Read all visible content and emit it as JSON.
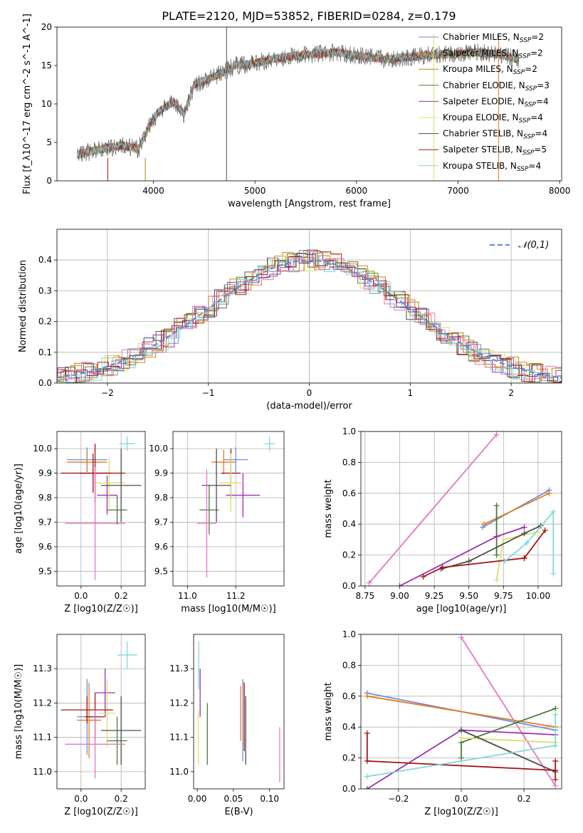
{
  "figure": {
    "title": "PLATE=2120, MJD=53852, FIBERID=0284, z=0.179",
    "palette": [
      "#6c8fd6",
      "#e87a1e",
      "#b8860b",
      "#4a7a3c",
      "#9b2fae",
      "#d9e06c",
      "#4d4d4d",
      "#a31515",
      "#7fd8dc"
    ],
    "extra_color": "#e377c2"
  },
  "chart_data": [
    {
      "id": "spectrum",
      "type": "line",
      "xlabel": "wavelength [Angstrom, rest frame]",
      "ylabel": "Flux [f_λ10^-17 erg cm^-2 s^-1 A^-1]",
      "xlim": [
        3050,
        8020
      ],
      "ylim": [
        0,
        20
      ],
      "xticks": [
        4000,
        5000,
        6000,
        7000,
        8000
      ],
      "yticks": [
        0,
        5,
        10,
        15,
        20
      ],
      "grid": false,
      "legend_position": "right",
      "legend": [
        "Chabrier MILES, N_SSP=2",
        "Salpeter MILES, N_SSP=2",
        "Kroupa MILES, N_SSP=2",
        "Chabrier ELODIE, N_SSP=3",
        "Salpeter ELODIE, N_SSP=4",
        "Kroupa ELODIE, N_SSP=4",
        "Chabrier STELIB, N_SSP=4",
        "Salpeter STELIB, N_SSP=5",
        "Kroupa STELIB, N_SSP=4"
      ],
      "continuum": {
        "x": [
          3250,
          3500,
          3700,
          3850,
          3950,
          4050,
          4200,
          4300,
          4400,
          4600,
          4800,
          5000,
          5200,
          5500,
          5800,
          6000,
          6300,
          6500,
          6800,
          7000,
          7200,
          7400,
          7600
        ],
        "y": [
          3.4,
          4.2,
          4.6,
          4.1,
          6.8,
          9.0,
          10.3,
          8.7,
          12.5,
          13.5,
          15.0,
          15.3,
          15.9,
          16.4,
          16.7,
          16.3,
          15.8,
          16.1,
          16.4,
          16.5,
          16.7,
          16.4,
          15.8
        ]
      },
      "spikes_x": [
        3550,
        3920,
        4720,
        6760,
        7400
      ]
    },
    {
      "id": "residuals",
      "type": "area",
      "xlabel": "(data-model)/error",
      "ylabel": "Normed distribution",
      "xlim": [
        -2.5,
        2.5
      ],
      "ylim": [
        0,
        0.5
      ],
      "xticks": [
        -2,
        -1,
        0,
        1,
        2
      ],
      "yticks": [
        0.0,
        0.1,
        0.2,
        0.3,
        0.4
      ],
      "grid": true,
      "legend": [
        "𝒩(0,1)"
      ],
      "legend_position": "top-right",
      "gaussian": {
        "mu": 0,
        "sigma": 1
      }
    },
    {
      "id": "age-vs-z",
      "type": "scatter",
      "xlabel": "Z [log10(Z/Z☉)]",
      "ylabel": "age [log10(age/yr)]",
      "xlim": [
        -0.12,
        0.32
      ],
      "ylim": [
        9.44,
        10.07
      ],
      "xticks": [
        0.0,
        0.2
      ],
      "yticks": [
        9.5,
        9.6,
        9.7,
        9.8,
        9.9,
        10.0
      ],
      "grid": true,
      "points": [
        {
          "x": 0.03,
          "y": 9.955,
          "xerr": 0.1,
          "yerr": 0.05,
          "c": 0
        },
        {
          "x": 0.03,
          "y": 9.945,
          "xerr": 0.1,
          "yerr": 0.04,
          "c": 1
        },
        {
          "x": 0.07,
          "y": 9.9,
          "xerr": 0.08,
          "yerr": 0.12,
          "c": 7
        },
        {
          "x": 0.13,
          "y": 9.81,
          "xerr": 0.05,
          "yerr": 0.08,
          "c": 4
        },
        {
          "x": 0.14,
          "y": 9.86,
          "xerr": 0.08,
          "yerr": 0.1,
          "c": 5
        },
        {
          "x": 0.18,
          "y": 9.75,
          "xerr": 0.05,
          "yerr": 0.06,
          "c": 3
        },
        {
          "x": 0.2,
          "y": 9.85,
          "xerr": 0.1,
          "yerr": 0.15,
          "c": 6
        },
        {
          "x": 0.06,
          "y": 9.9,
          "xerr": 0.16,
          "yerr": 0.08,
          "c": 7
        },
        {
          "x": 0.23,
          "y": 10.02,
          "xerr": 0.04,
          "yerr": 0.03,
          "c": 8
        },
        {
          "x": 0.07,
          "y": 9.695,
          "xerr": 0.15,
          "yerr": 0.23,
          "c": 9
        }
      ]
    },
    {
      "id": "age-vs-mass",
      "type": "scatter",
      "xlabel": "mass [log10(M/M☉)]",
      "ylabel": "",
      "xlim": [
        10.94,
        11.4
      ],
      "ylim": [
        9.44,
        10.07
      ],
      "xticks": [
        11.0,
        11.2
      ],
      "yticks": [
        9.5,
        9.6,
        9.7,
        9.8,
        9.9,
        10.0
      ],
      "grid": true,
      "points": [
        {
          "x": 11.2,
          "y": 9.955,
          "xerr": 0.05,
          "yerr": 0.05,
          "c": 0
        },
        {
          "x": 11.15,
          "y": 9.945,
          "xerr": 0.05,
          "yerr": 0.05,
          "c": 1
        },
        {
          "x": 11.18,
          "y": 9.9,
          "xerr": 0.04,
          "yerr": 0.1,
          "c": 7
        },
        {
          "x": 11.23,
          "y": 9.81,
          "xerr": 0.07,
          "yerr": 0.09,
          "c": 4
        },
        {
          "x": 11.18,
          "y": 9.86,
          "xerr": 0.05,
          "yerr": 0.12,
          "c": 5
        },
        {
          "x": 11.09,
          "y": 9.75,
          "xerr": 0.04,
          "yerr": 0.1,
          "c": 3
        },
        {
          "x": 11.12,
          "y": 9.85,
          "xerr": 0.06,
          "yerr": 0.15,
          "c": 6
        },
        {
          "x": 11.34,
          "y": 10.02,
          "xerr": 0.02,
          "yerr": 0.03,
          "c": 8
        },
        {
          "x": 11.08,
          "y": 9.695,
          "xerr": 0.04,
          "yerr": 0.22,
          "c": 9
        }
      ]
    },
    {
      "id": "weight-vs-age",
      "type": "line",
      "xlabel": "age [log10(age/yr)]",
      "ylabel": "mass weight",
      "xlim": [
        8.72,
        10.17
      ],
      "ylim": [
        0,
        1
      ],
      "xticks": [
        8.75,
        9.0,
        9.25,
        9.5,
        9.75,
        10.0
      ],
      "yticks": [
        0.0,
        0.2,
        0.4,
        0.6,
        0.8,
        1.0
      ],
      "grid": true,
      "series": [
        {
          "c": 9,
          "x": [
            8.78,
            9.7
          ],
          "y": [
            0.02,
            0.98
          ]
        },
        {
          "c": 0,
          "x": [
            9.6,
            10.08
          ],
          "y": [
            0.38,
            0.62
          ]
        },
        {
          "c": 1,
          "x": [
            9.61,
            10.08
          ],
          "y": [
            0.4,
            0.6
          ]
        },
        {
          "c": 3,
          "x": [
            9.7,
            9.7
          ],
          "y": [
            0.2,
            0.52
          ]
        },
        {
          "c": 4,
          "x": [
            9.0,
            9.7,
            9.9
          ],
          "y": [
            0.0,
            0.32,
            0.38
          ]
        },
        {
          "c": 5,
          "x": [
            9.7,
            9.75,
            10.0
          ],
          "y": [
            0.04,
            0.3,
            0.35
          ]
        },
        {
          "c": 6,
          "x": [
            9.3,
            9.5,
            9.9,
            10.02
          ],
          "y": [
            0.11,
            0.16,
            0.34,
            0.39
          ]
        },
        {
          "c": 7,
          "x": [
            9.17,
            9.31,
            9.9,
            9.9,
            10.05
          ],
          "y": [
            0.06,
            0.12,
            0.18,
            0.18,
            0.36
          ]
        },
        {
          "c": 8,
          "x": [
            9.76,
            9.92,
            10.11,
            10.11
          ],
          "y": [
            0.16,
            0.28,
            0.48,
            0.08
          ]
        }
      ]
    },
    {
      "id": "mass-vs-z",
      "type": "scatter",
      "xlabel": "Z [log10(Z/Z☉)]",
      "ylabel": "mass [log10(M/M☉)]",
      "xlim": [
        -0.12,
        0.32
      ],
      "ylim": [
        10.95,
        11.4
      ],
      "xticks": [
        0.0,
        0.2
      ],
      "yticks": [
        11.0,
        11.1,
        11.2,
        11.3
      ],
      "grid": true,
      "points": [
        {
          "x": 0.03,
          "y": 11.16,
          "xerr": 0.05,
          "yerr": 0.11,
          "c": 0
        },
        {
          "x": 0.04,
          "y": 11.15,
          "xerr": 0.06,
          "yerr": 0.11,
          "c": 1
        },
        {
          "x": 0.07,
          "y": 11.16,
          "xerr": 0.05,
          "yerr": 0.07,
          "c": 7
        },
        {
          "x": 0.12,
          "y": 11.23,
          "xerr": 0.05,
          "yerr": 0.07,
          "c": 4
        },
        {
          "x": 0.13,
          "y": 11.17,
          "xerr": 0.04,
          "yerr": 0.1,
          "c": 5
        },
        {
          "x": 0.18,
          "y": 11.09,
          "xerr": 0.05,
          "yerr": 0.07,
          "c": 3
        },
        {
          "x": 0.2,
          "y": 11.12,
          "xerr": 0.1,
          "yerr": 0.1,
          "c": 6
        },
        {
          "x": 0.03,
          "y": 11.18,
          "xerr": 0.13,
          "yerr": 0.04,
          "c": 7
        },
        {
          "x": 0.23,
          "y": 11.34,
          "xerr": 0.05,
          "yerr": 0.04,
          "c": 8
        },
        {
          "x": 0.07,
          "y": 11.08,
          "xerr": 0.15,
          "yerr": 0.1,
          "c": 9
        }
      ]
    },
    {
      "id": "mass-vs-ebv",
      "type": "scatter",
      "xlabel": "E(B-V)",
      "ylabel": "",
      "xlim": [
        -0.005,
        0.12
      ],
      "ylim": [
        10.95,
        11.4
      ],
      "xticks": [
        0.0,
        0.05,
        0.1
      ],
      "yticks": [
        11.0,
        11.1,
        11.2,
        11.3
      ],
      "grid": false,
      "points": [
        {
          "x": 0.002,
          "y": 11.31,
          "xerr": 0,
          "yerr": 0.07,
          "c": 8
        },
        {
          "x": 0.004,
          "y": 11.23,
          "xerr": 0,
          "yerr": 0.07,
          "c": 4
        },
        {
          "x": 0.0015,
          "y": 11.1,
          "xerr": 0,
          "yerr": 0.08,
          "c": 5
        },
        {
          "x": 0.014,
          "y": 11.11,
          "xerr": 0,
          "yerr": 0.09,
          "c": 3
        },
        {
          "x": 0.06,
          "y": 11.17,
          "xerr": 0,
          "yerr": 0.08,
          "c": 1
        },
        {
          "x": 0.063,
          "y": 11.15,
          "xerr": 0,
          "yerr": 0.12,
          "c": 0
        },
        {
          "x": 0.065,
          "y": 11.16,
          "xerr": 0,
          "yerr": 0.1,
          "c": 7
        },
        {
          "x": 0.067,
          "y": 11.12,
          "xerr": 0,
          "yerr": 0.1,
          "c": 6
        },
        {
          "x": 0.114,
          "y": 11.05,
          "xerr": 0,
          "yerr": 0.08,
          "c": 9
        }
      ]
    },
    {
      "id": "weight-vs-z",
      "type": "line",
      "xlabel": "Z [log10(Z/Z☉)]",
      "ylabel": "mass weight",
      "xlim": [
        -0.32,
        0.32
      ],
      "ylim": [
        0,
        1
      ],
      "xticks": [
        -0.2,
        0.0,
        0.2
      ],
      "yticks": [
        0.0,
        0.2,
        0.4,
        0.6,
        0.8,
        1.0
      ],
      "grid": true,
      "series": [
        {
          "c": 9,
          "x": [
            0.0,
            0.3
          ],
          "y": [
            0.98,
            0.02
          ]
        },
        {
          "c": 0,
          "x": [
            -0.3,
            0.3
          ],
          "y": [
            0.62,
            0.38
          ]
        },
        {
          "c": 1,
          "x": [
            -0.3,
            0.3
          ],
          "y": [
            0.6,
            0.4
          ]
        },
        {
          "c": 3,
          "x": [
            0.0,
            0.0,
            0.3
          ],
          "y": [
            0.2,
            0.3,
            0.52
          ]
        },
        {
          "c": 4,
          "x": [
            -0.3,
            0.0,
            0.3
          ],
          "y": [
            0.0,
            0.38,
            0.35
          ]
        },
        {
          "c": 5,
          "x": [
            0.0,
            0.3
          ],
          "y": [
            0.33,
            0.3
          ]
        },
        {
          "c": 6,
          "x": [
            0.0,
            0.3
          ],
          "y": [
            0.38,
            0.11
          ]
        },
        {
          "c": 7,
          "x": [
            -0.3,
            -0.3,
            0.3,
            0.3,
            0.3
          ],
          "y": [
            0.36,
            0.18,
            0.12,
            0.18,
            0.06
          ]
        },
        {
          "c": 8,
          "x": [
            -0.3,
            0.3,
            0.3
          ],
          "y": [
            0.08,
            0.28,
            0.48
          ]
        }
      ]
    }
  ]
}
